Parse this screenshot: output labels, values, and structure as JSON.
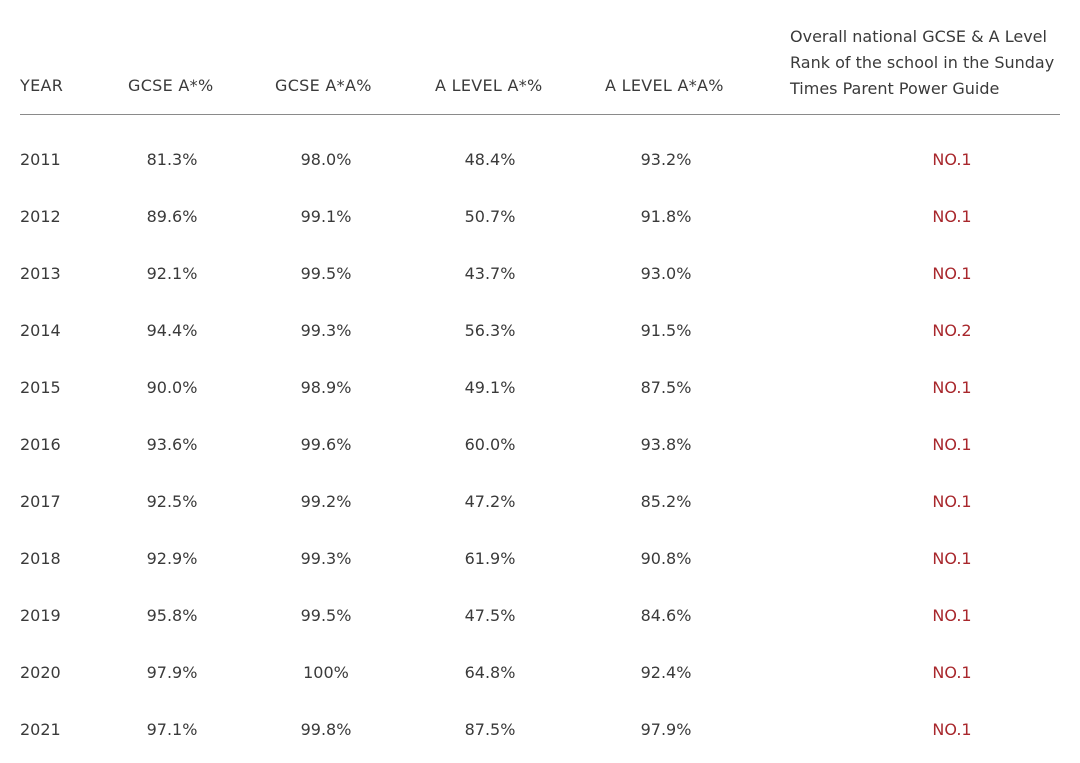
{
  "header": {
    "year": "YEAR",
    "gcse_astar": "GCSE A*%",
    "gcse_astar_a": "GCSE A*A%",
    "alevel_astar": "A LEVEL A*%",
    "alevel_astar_a": "A LEVEL A*A%",
    "rank_note": "Overall national GCSE & A Level Rank of the school in the Sunday Times Parent Power Guide"
  },
  "accent_color": "#a8272c",
  "rows": [
    {
      "year": "2011",
      "gcse_astar": "81.3%",
      "gcse_astar_a": "98.0%",
      "alevel_astar": "48.4%",
      "alevel_astar_a": "93.2%",
      "rank": "NO.1"
    },
    {
      "year": "2012",
      "gcse_astar": "89.6%",
      "gcse_astar_a": "99.1%",
      "alevel_astar": "50.7%",
      "alevel_astar_a": "91.8%",
      "rank": "NO.1"
    },
    {
      "year": "2013",
      "gcse_astar": "92.1%",
      "gcse_astar_a": "99.5%",
      "alevel_astar": "43.7%",
      "alevel_astar_a": "93.0%",
      "rank": "NO.1"
    },
    {
      "year": "2014",
      "gcse_astar": "94.4%",
      "gcse_astar_a": "99.3%",
      "alevel_astar": "56.3%",
      "alevel_astar_a": "91.5%",
      "rank": "NO.2"
    },
    {
      "year": "2015",
      "gcse_astar": "90.0%",
      "gcse_astar_a": "98.9%",
      "alevel_astar": "49.1%",
      "alevel_astar_a": "87.5%",
      "rank": "NO.1"
    },
    {
      "year": "2016",
      "gcse_astar": "93.6%",
      "gcse_astar_a": "99.6%",
      "alevel_astar": "60.0%",
      "alevel_astar_a": "93.8%",
      "rank": "NO.1"
    },
    {
      "year": "2017",
      "gcse_astar": "92.5%",
      "gcse_astar_a": "99.2%",
      "alevel_astar": "47.2%",
      "alevel_astar_a": "85.2%",
      "rank": "NO.1"
    },
    {
      "year": "2018",
      "gcse_astar": "92.9%",
      "gcse_astar_a": "99.3%",
      "alevel_astar": "61.9%",
      "alevel_astar_a": "90.8%",
      "rank": "NO.1"
    },
    {
      "year": "2019",
      "gcse_astar": "95.8%",
      "gcse_astar_a": "99.5%",
      "alevel_astar": "47.5%",
      "alevel_astar_a": "84.6%",
      "rank": "NO.1"
    },
    {
      "year": "2020",
      "gcse_astar": "97.9%",
      "gcse_astar_a": "100%",
      "alevel_astar": "64.8%",
      "alevel_astar_a": "92.4%",
      "rank": "NO.1"
    },
    {
      "year": "2021",
      "gcse_astar": "97.1%",
      "gcse_astar_a": "99.8%",
      "alevel_astar": "87.5%",
      "alevel_astar_a": "97.9%",
      "rank": "NO.1"
    }
  ]
}
